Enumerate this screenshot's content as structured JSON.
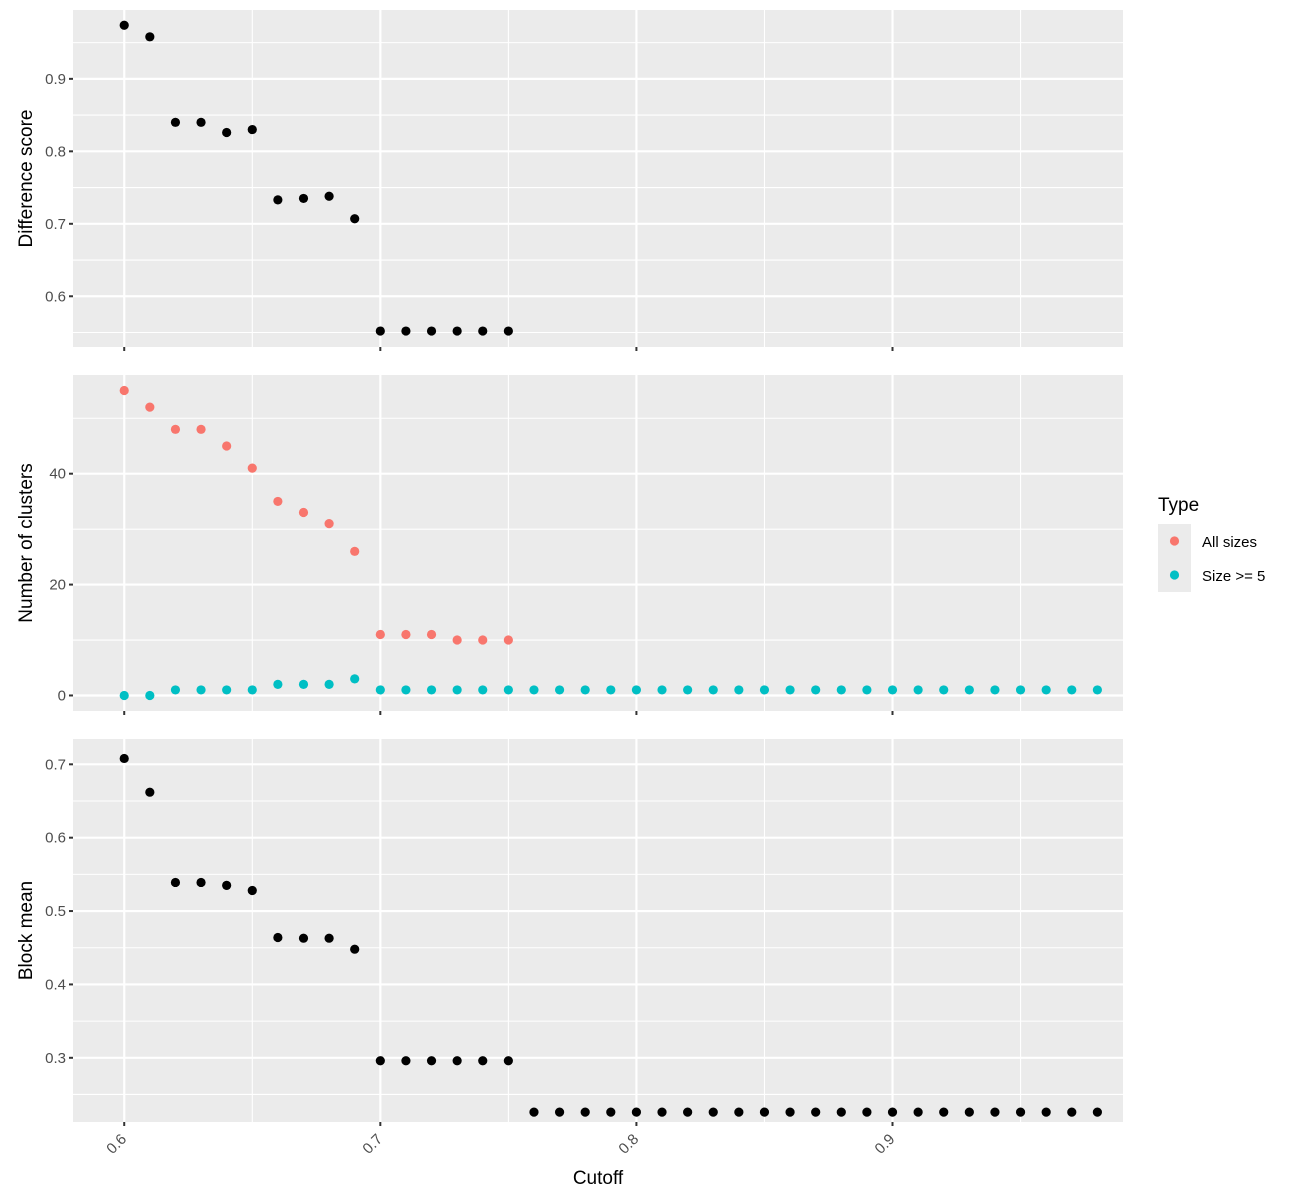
{
  "chart_data": {
    "type": "scatter",
    "layout": "faceted-vertical",
    "xlabel": "Cutoff",
    "xlim": [
      0.58,
      0.99
    ],
    "x_ticks": [
      0.6,
      0.7,
      0.8,
      0.9
    ],
    "x_tick_labels": [
      "0.6",
      "0.7",
      "0.8",
      "0.9"
    ],
    "x_tick_label_rotation": "45 degrees",
    "grid": true,
    "legend": {
      "title": "Type",
      "placement": "right",
      "entries": [
        {
          "label": "All sizes",
          "color": "#F8766D"
        },
        {
          "label": "Size >= 5",
          "color": "#00BFC4"
        }
      ]
    },
    "panels": [
      {
        "ylabel": "Difference score",
        "ylim": [
          0.53,
          0.995
        ],
        "y_ticks": [
          0.6,
          0.7,
          0.8,
          0.9
        ],
        "y_tick_labels": [
          "0.6",
          "0.7",
          "0.8",
          "0.9"
        ],
        "series": [
          {
            "color": "#000000",
            "x": [
              0.6,
              0.61,
              0.62,
              0.63,
              0.64,
              0.65,
              0.66,
              0.67,
              0.68,
              0.69,
              0.7,
              0.71,
              0.72,
              0.73,
              0.74,
              0.75
            ],
            "y": [
              0.974,
              0.958,
              0.84,
              0.84,
              0.826,
              0.83,
              0.733,
              0.735,
              0.738,
              0.707,
              0.552,
              0.552,
              0.552,
              0.552,
              0.552,
              0.552
            ]
          }
        ]
      },
      {
        "ylabel": "Number of clusters",
        "ylim": [
          -2.8,
          57.8
        ],
        "y_ticks": [
          0,
          20,
          40
        ],
        "y_tick_labels": [
          "0",
          "20",
          "40"
        ],
        "series": [
          {
            "name": "All sizes",
            "color": "#F8766D",
            "x": [
              0.6,
              0.61,
              0.62,
              0.63,
              0.64,
              0.65,
              0.66,
              0.67,
              0.68,
              0.69,
              0.7,
              0.71,
              0.72,
              0.73,
              0.74,
              0.75
            ],
            "y": [
              55,
              52,
              48,
              48,
              45,
              41,
              35,
              33,
              31,
              26,
              11,
              11,
              11,
              10,
              10,
              10
            ]
          },
          {
            "name": "Size >= 5",
            "color": "#00BFC4",
            "x": [
              0.6,
              0.61,
              0.62,
              0.63,
              0.64,
              0.65,
              0.66,
              0.67,
              0.68,
              0.69,
              0.7,
              0.71,
              0.72,
              0.73,
              0.74,
              0.75,
              0.76,
              0.77,
              0.78,
              0.79,
              0.8,
              0.81,
              0.82,
              0.83,
              0.84,
              0.85,
              0.86,
              0.87,
              0.88,
              0.89,
              0.9,
              0.91,
              0.92,
              0.93,
              0.94,
              0.95,
              0.96,
              0.97,
              0.98
            ],
            "y": [
              0,
              0,
              1,
              1,
              1,
              1,
              2,
              2,
              2,
              3,
              1,
              1,
              1,
              1,
              1,
              1,
              1,
              1,
              1,
              1,
              1,
              1,
              1,
              1,
              1,
              1,
              1,
              1,
              1,
              1,
              1,
              1,
              1,
              1,
              1,
              1,
              1,
              1,
              1
            ]
          }
        ]
      },
      {
        "ylabel": "Block mean",
        "ylim": [
          0.2125,
          0.7345
        ],
        "y_ticks": [
          0.3,
          0.4,
          0.5,
          0.6,
          0.7
        ],
        "y_tick_labels": [
          "0.3",
          "0.4",
          "0.5",
          "0.6",
          "0.7"
        ],
        "series": [
          {
            "color": "#000000",
            "x": [
              0.6,
              0.61,
              0.62,
              0.63,
              0.64,
              0.65,
              0.66,
              0.67,
              0.68,
              0.69,
              0.7,
              0.71,
              0.72,
              0.73,
              0.74,
              0.75,
              0.76,
              0.77,
              0.78,
              0.79,
              0.8,
              0.81,
              0.82,
              0.83,
              0.84,
              0.85,
              0.86,
              0.87,
              0.88,
              0.89,
              0.9,
              0.91,
              0.92,
              0.93,
              0.94,
              0.95,
              0.96,
              0.97,
              0.98
            ],
            "y": [
              0.708,
              0.662,
              0.539,
              0.539,
              0.535,
              0.528,
              0.464,
              0.463,
              0.463,
              0.448,
              0.296,
              0.296,
              0.296,
              0.296,
              0.296,
              0.296,
              0.226,
              0.226,
              0.226,
              0.226,
              0.226,
              0.226,
              0.226,
              0.226,
              0.226,
              0.226,
              0.226,
              0.226,
              0.226,
              0.226,
              0.226,
              0.226,
              0.226,
              0.226,
              0.226,
              0.226,
              0.226,
              0.226,
              0.226
            ]
          }
        ]
      }
    ]
  }
}
